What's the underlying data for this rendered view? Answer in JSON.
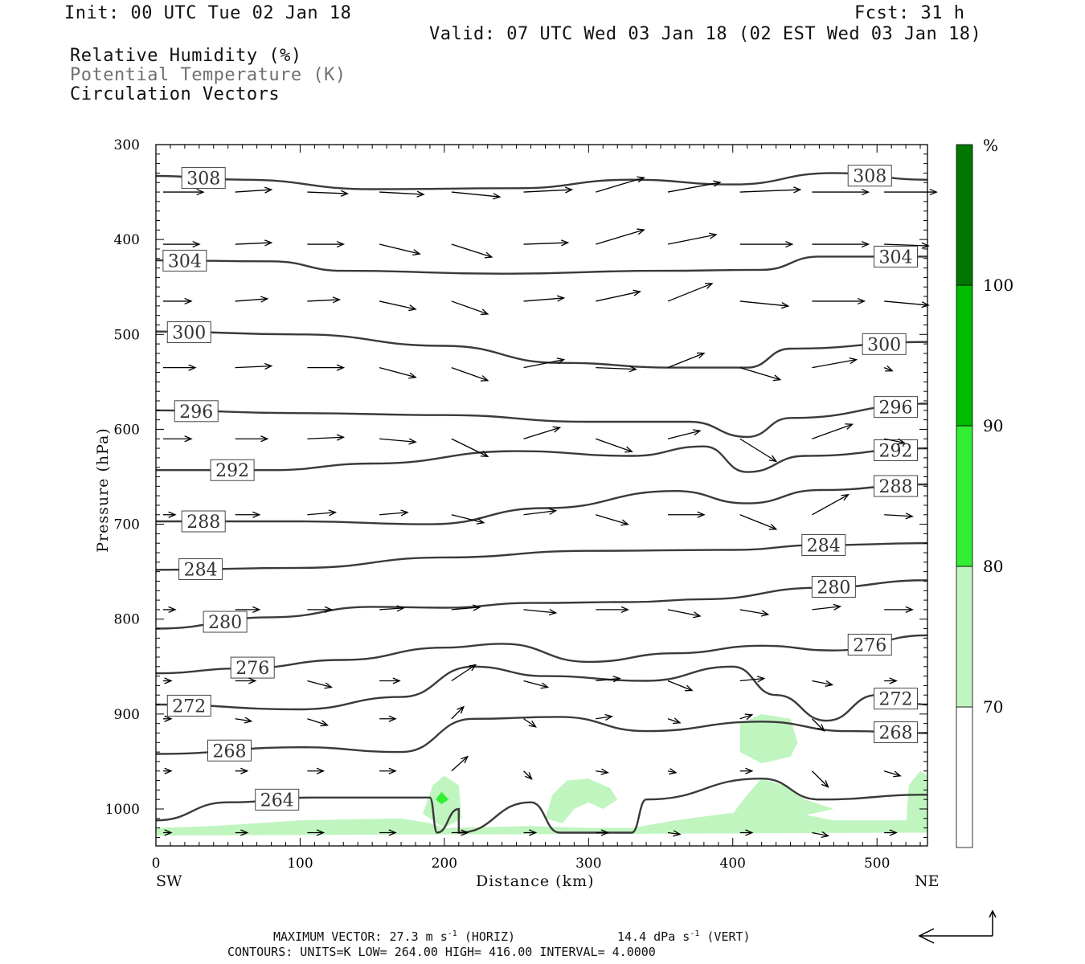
{
  "header": {
    "init": "Init: 00 UTC Tue 02 Jan 18",
    "fcst": "Fcst:   31 h",
    "valid": "Valid: 07 UTC Wed 03 Jan 18 (02 EST Wed 03 Jan 18)"
  },
  "fields": {
    "rh": "Relative Humidity (%)",
    "theta": "Potential Temperature (K)",
    "vectors": "Circulation Vectors"
  },
  "footer": {
    "max_vector": "MAXIMUM VECTOR:  27.3 m s",
    "horiz_tail": " (HORIZ)",
    "vert_val": "14.4 dPa s",
    "vert_tail": " (VERT)",
    "exp": "-1",
    "contours": "CONTOURS:  UNITS=K  LOW=  264.00       HIGH=  416.00       INTERVAL=    4.0000"
  },
  "chart_data": {
    "type": "cross-section",
    "xlabel": "Distance (km)",
    "ylabel": "Pressure (hPa)",
    "x_endpoints": {
      "left": "SW",
      "right": "NE"
    },
    "xlim": [
      0,
      535
    ],
    "ylim": [
      1030,
      300
    ],
    "x_ticks": [
      0,
      100,
      200,
      300,
      400,
      500
    ],
    "y_ticks": [
      300,
      400,
      500,
      600,
      700,
      800,
      900,
      1000
    ],
    "colorbar": {
      "unit": "%",
      "levels": [
        70,
        80,
        90,
        100
      ],
      "colors": [
        "#ffffff",
        "#c0f5c0",
        "#33ee33",
        "#00bb00",
        "#007700"
      ]
    },
    "isentropes": [
      {
        "theta": 308,
        "labels_x": [
          33,
          495
        ],
        "points": [
          [
            0,
            333
          ],
          [
            60,
            337
          ],
          [
            150,
            347
          ],
          [
            250,
            346
          ],
          [
            330,
            337
          ],
          [
            400,
            342
          ],
          [
            470,
            330
          ],
          [
            535,
            337
          ]
        ]
      },
      {
        "theta": 304,
        "labels_x": [
          20,
          513
        ],
        "points": [
          [
            0,
            422
          ],
          [
            80,
            423
          ],
          [
            130,
            433
          ],
          [
            240,
            436
          ],
          [
            350,
            433
          ],
          [
            420,
            432
          ],
          [
            460,
            418
          ],
          [
            535,
            418
          ]
        ]
      },
      {
        "theta": 300,
        "labels_x": [
          23,
          505
        ],
        "points": [
          [
            0,
            497
          ],
          [
            100,
            500
          ],
          [
            200,
            512
          ],
          [
            280,
            530
          ],
          [
            360,
            535
          ],
          [
            410,
            535
          ],
          [
            440,
            515
          ],
          [
            535,
            508
          ]
        ]
      },
      {
        "theta": 296,
        "labels_x": [
          28,
          513
        ],
        "points": [
          [
            0,
            580
          ],
          [
            100,
            583
          ],
          [
            200,
            585
          ],
          [
            300,
            592
          ],
          [
            370,
            592
          ],
          [
            410,
            608
          ],
          [
            440,
            588
          ],
          [
            535,
            573
          ]
        ]
      },
      {
        "theta": 292,
        "labels_x": [
          53,
          513
        ],
        "points": [
          [
            0,
            643
          ],
          [
            80,
            643
          ],
          [
            150,
            636
          ],
          [
            250,
            623
          ],
          [
            330,
            628
          ],
          [
            380,
            618
          ],
          [
            410,
            645
          ],
          [
            450,
            628
          ],
          [
            535,
            620
          ]
        ]
      },
      {
        "theta": 288,
        "labels_x": [
          33,
          513
        ],
        "points": [
          [
            0,
            697
          ],
          [
            100,
            697
          ],
          [
            190,
            700
          ],
          [
            270,
            683
          ],
          [
            360,
            665
          ],
          [
            410,
            678
          ],
          [
            460,
            664
          ],
          [
            535,
            658
          ]
        ]
      },
      {
        "theta": 284,
        "labels_x": [
          31,
          463
        ],
        "points": [
          [
            0,
            748
          ],
          [
            100,
            746
          ],
          [
            200,
            735
          ],
          [
            300,
            728
          ],
          [
            400,
            727
          ],
          [
            460,
            722
          ],
          [
            535,
            720
          ]
        ]
      },
      {
        "theta": 280,
        "labels_x": [
          48,
          470
        ],
        "points": [
          [
            0,
            810
          ],
          [
            80,
            798
          ],
          [
            150,
            787
          ],
          [
            200,
            788
          ],
          [
            260,
            783
          ],
          [
            330,
            782
          ],
          [
            380,
            779
          ],
          [
            460,
            767
          ],
          [
            535,
            759
          ]
        ]
      },
      {
        "theta": 276,
        "labels_x": [
          67,
          495
        ],
        "points": [
          [
            0,
            857
          ],
          [
            60,
            852
          ],
          [
            130,
            843
          ],
          [
            200,
            830
          ],
          [
            240,
            826
          ],
          [
            300,
            845
          ],
          [
            360,
            836
          ],
          [
            420,
            828
          ],
          [
            470,
            833
          ],
          [
            535,
            817
          ]
        ]
      },
      {
        "theta": 272,
        "labels_x": [
          23,
          513
        ],
        "points": [
          [
            0,
            890
          ],
          [
            100,
            895
          ],
          [
            170,
            882
          ],
          [
            220,
            850
          ],
          [
            270,
            860
          ],
          [
            340,
            865
          ],
          [
            400,
            850
          ],
          [
            430,
            880
          ],
          [
            465,
            907
          ],
          [
            500,
            880
          ],
          [
            535,
            890
          ]
        ]
      },
      {
        "theta": 268,
        "labels_x": [
          51,
          513
        ],
        "points": [
          [
            0,
            942
          ],
          [
            100,
            935
          ],
          [
            170,
            940
          ],
          [
            220,
            905
          ],
          [
            280,
            903
          ],
          [
            340,
            918
          ],
          [
            420,
            908
          ],
          [
            480,
            918
          ],
          [
            535,
            920
          ]
        ]
      },
      {
        "theta": 264,
        "labels_x": [
          84
        ],
        "points": [
          [
            0,
            1012
          ],
          [
            50,
            993
          ],
          [
            110,
            988
          ],
          [
            190,
            988
          ],
          [
            195,
            1025
          ],
          [
            210,
            1000
          ],
          [
            210,
            1025
          ],
          [
            260,
            993
          ],
          [
            280,
            1025
          ],
          [
            330,
            1025
          ],
          [
            340,
            990
          ],
          [
            420,
            968
          ],
          [
            460,
            990
          ],
          [
            535,
            985
          ]
        ]
      }
    ],
    "vector_max": {
      "horiz": 27.3,
      "horiz_unit": "m s-1",
      "vert": 14.4,
      "vert_unit": "dPa s-1"
    },
    "vectors_grid": {
      "columns_km": [
        5,
        55,
        105,
        155,
        205,
        255,
        305,
        355,
        405,
        455,
        505
      ],
      "rows_hPa": [
        350,
        405,
        465,
        535,
        610,
        690,
        790,
        865,
        905,
        960,
        1025
      ]
    }
  }
}
